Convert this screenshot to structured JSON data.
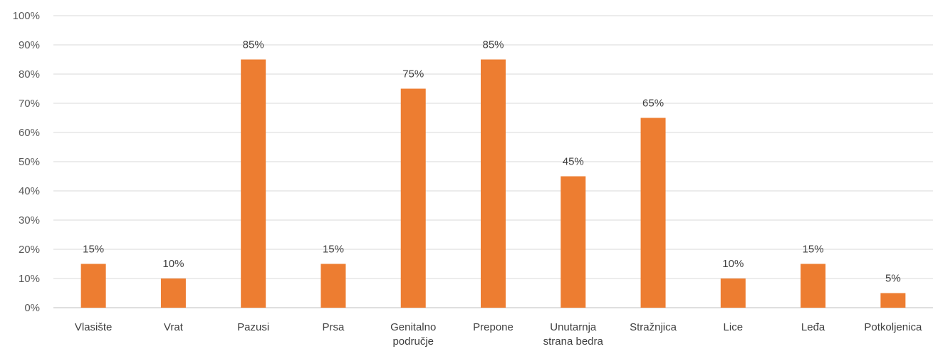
{
  "chart_data": {
    "type": "bar",
    "categories": [
      "Vlasište",
      "Vrat",
      "Pazusi",
      "Prsa",
      "Genitalno područje",
      "Prepone",
      "Unutarnja strana bedra",
      "Stražnjica",
      "Lice",
      "Leđa",
      "Potkoljenica"
    ],
    "category_lines": [
      [
        "Vlasište"
      ],
      [
        "Vrat"
      ],
      [
        "Pazusi"
      ],
      [
        "Prsa"
      ],
      [
        "Genitalno",
        "područje"
      ],
      [
        "Prepone"
      ],
      [
        "Unutarnja",
        "strana bedra"
      ],
      [
        "Stražnjica"
      ],
      [
        "Lice"
      ],
      [
        "Leđa"
      ],
      [
        "Potkoljenica"
      ]
    ],
    "values": [
      15,
      10,
      85,
      15,
      75,
      85,
      45,
      65,
      10,
      15,
      5
    ],
    "data_labels": [
      "15%",
      "10%",
      "85%",
      "15%",
      "75%",
      "85%",
      "45%",
      "65%",
      "10%",
      "15%",
      "5%"
    ],
    "y_ticks": [
      "0%",
      "10%",
      "20%",
      "30%",
      "40%",
      "50%",
      "60%",
      "70%",
      "80%",
      "90%",
      "100%"
    ],
    "ylim": [
      0,
      100
    ],
    "title": "",
    "xlabel": "",
    "ylabel": "",
    "grid": true,
    "legend": "none",
    "bar_color": "#ED7D31"
  }
}
